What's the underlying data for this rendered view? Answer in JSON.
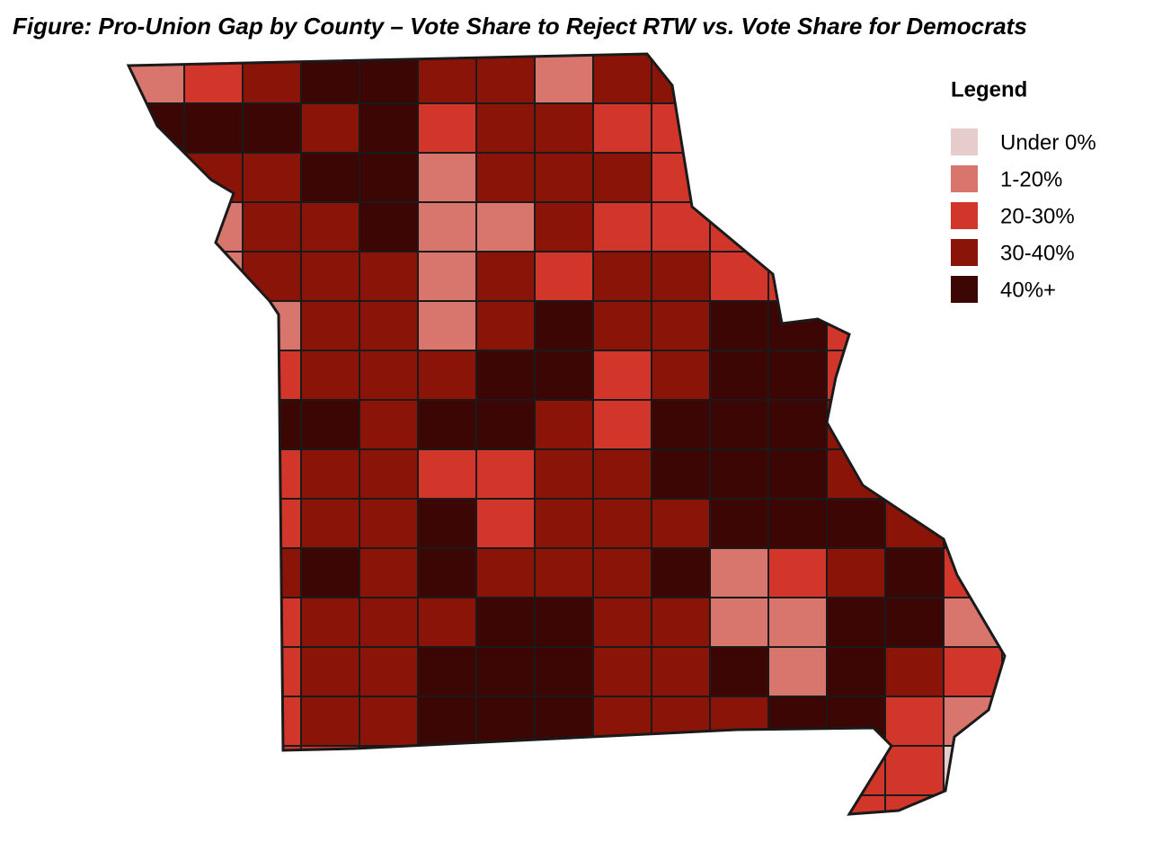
{
  "title": "Figure: Pro-Union Gap by County – Vote Share to Reject RTW vs. Vote Share for Democrats",
  "legend": {
    "title": "Legend",
    "items": [
      {
        "label": "Under 0%",
        "color": "#e6cccb"
      },
      {
        "label": "1-20%",
        "color": "#d8766d"
      },
      {
        "label": "20-30%",
        "color": "#d2362b"
      },
      {
        "label": "30-40%",
        "color": "#8b1409"
      },
      {
        "label": "40%+",
        "color": "#3b0604"
      }
    ]
  }
}
